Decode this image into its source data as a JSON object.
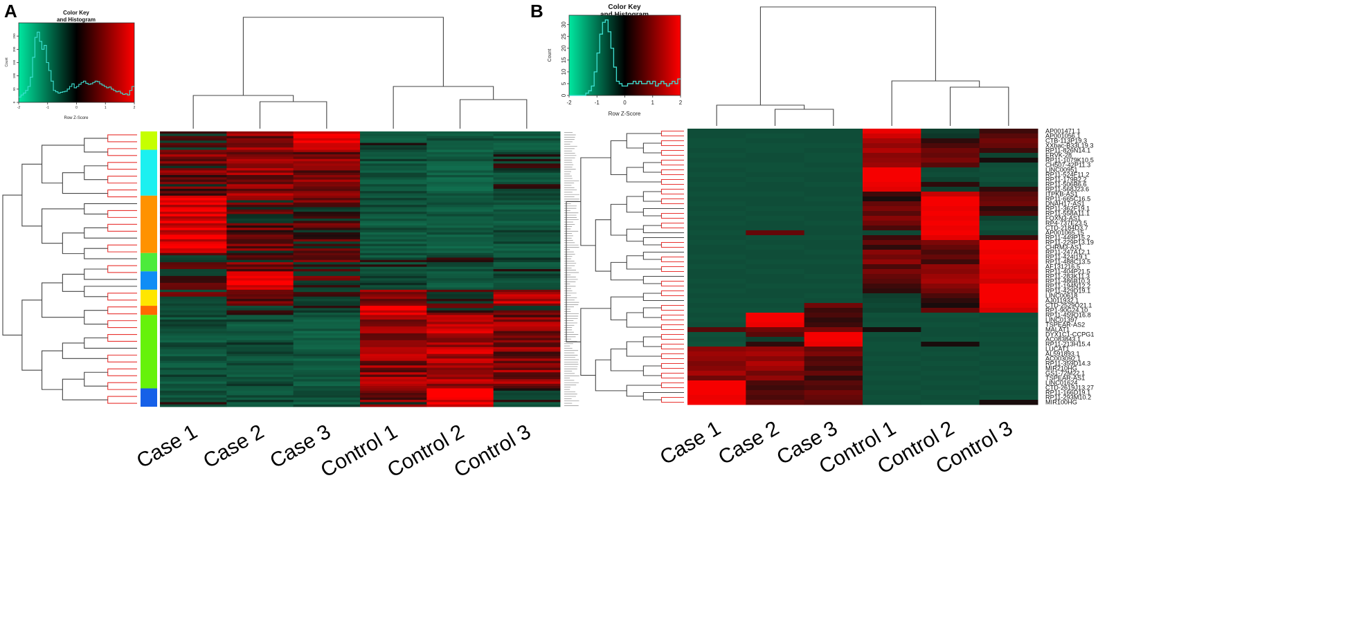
{
  "chart_data": [
    {
      "panel": "A",
      "type": "heatmap",
      "color_key": {
        "title_line1": "Color Key",
        "title_line2": "and Histogram",
        "xlabel": "Row Z-Score",
        "ylabel": "Count",
        "x_ticks": [
          "-2",
          "-1",
          "0",
          "1",
          "2"
        ],
        "y_ticks": [
          "0",
          "50",
          "100",
          "150",
          "200",
          "250"
        ],
        "xlim": [
          -2,
          2
        ],
        "ylim": [
          0,
          300
        ],
        "colors": [
          "#00e7a0",
          "#000000",
          "#ff0000"
        ],
        "histogram": [
          20,
          28,
          35,
          45,
          60,
          95,
          170,
          245,
          265,
          230,
          200,
          215,
          150,
          120,
          80,
          45,
          40,
          35,
          38,
          40,
          42,
          50,
          60,
          70,
          55,
          60,
          68,
          75,
          80,
          72,
          68,
          70,
          75,
          80,
          78,
          70,
          65,
          60,
          55,
          58,
          50,
          45,
          40,
          42,
          35,
          30,
          32,
          28,
          45,
          60
        ]
      },
      "columns": [
        "Case 1",
        "Case 2",
        "Case 3",
        "Control 1",
        "Control 2",
        "Control 3"
      ],
      "row_count": 120,
      "row_groups": [
        {
          "color": "#c6ff00",
          "rows": 8
        },
        {
          "color": "#1cf0f0",
          "rows": 20
        },
        {
          "color": "#ff9200",
          "rows": 25
        },
        {
          "color": "#4ceb3c",
          "rows": 8
        },
        {
          "color": "#0f8df5",
          "rows": 8
        },
        {
          "color": "#ffe600",
          "rows": 7
        },
        {
          "color": "#ff6a00",
          "rows": 4
        },
        {
          "color": "#66f20a",
          "rows": 32
        },
        {
          "color": "#1660e8",
          "rows": 8
        }
      ],
      "block_means": [
        [
          0.2,
          0.8,
          1.9,
          -0.6,
          -0.8,
          -0.9
        ],
        [
          0.6,
          0.9,
          0.8,
          -0.7,
          -1.0,
          -0.4
        ],
        [
          1.6,
          0.4,
          0.3,
          -0.8,
          -0.9,
          -0.7
        ],
        [
          0.3,
          0.5,
          0.4,
          -0.5,
          -0.4,
          -0.5
        ],
        [
          0.2,
          1.9,
          0.3,
          -0.3,
          -0.6,
          -0.5
        ],
        [
          0.1,
          0.2,
          -0.3,
          0.9,
          0.1,
          1.2
        ],
        [
          0.0,
          0.1,
          -0.2,
          1.8,
          0.4,
          0.5
        ],
        [
          -0.7,
          -0.6,
          -0.9,
          0.9,
          1.2,
          0.8
        ],
        [
          -0.5,
          -0.6,
          -0.8,
          0.6,
          1.9,
          -0.3
        ]
      ]
    },
    {
      "panel": "B",
      "type": "heatmap",
      "color_key": {
        "title_line1": "Color Key",
        "title_line2": "and Histogram",
        "xlabel": "Row Z-Score",
        "ylabel": "Count",
        "x_ticks": [
          "-2",
          "-1",
          "0",
          "1",
          "2"
        ],
        "y_ticks": [
          "0",
          "5",
          "10",
          "15",
          "20",
          "25",
          "30"
        ],
        "xlim": [
          -2,
          2
        ],
        "ylim": [
          0,
          34
        ],
        "colors": [
          "#00e7a0",
          "#000000",
          "#ff0000"
        ],
        "histogram": [
          0,
          0,
          0,
          0,
          0,
          0,
          1,
          2,
          4,
          10,
          18,
          26,
          31,
          32,
          27,
          20,
          12,
          6,
          5,
          4,
          4,
          5,
          5,
          6,
          5,
          6,
          5,
          5,
          6,
          5,
          6,
          4,
          5,
          6,
          5,
          4,
          5,
          6,
          5,
          7
        ]
      },
      "columns": [
        "Case 1",
        "Case 2",
        "Case 3",
        "Control 1",
        "Control 2",
        "Control 3"
      ],
      "genes": [
        "AP001471.1",
        "AP001056.1",
        "CTB-113P19.3",
        "XXbac-B33L19.3",
        "RP11-826N14.1",
        "ERVK-28",
        "RP11-1079K10.5",
        "CH507-42P11.3",
        "LINC00951",
        "RP11-524F11.2",
        "RP11-179B2.2",
        "RP11-506B6.6",
        "RP11-568J23.6",
        "ITPKB-AS1",
        "RP11-665C16.5",
        "DNAH17-AS1",
        "RP11-362F19.1",
        "RP11-558A11.1",
        "FOXN3-AS1",
        "RP4-737E23.5",
        "CTD-2184D3.7",
        "AP001065.15",
        "RP11-449P15.2",
        "RP11-229P13.19",
        "CHRM3-AS1",
        "RP11-247A12.1",
        "RP11-424I19.1",
        "RP11-488C13.5",
        "AF131216.5",
        "RP11-404P21.5",
        "RP11-283K11.3",
        "RP11-486B10.3",
        "RP11-194N12.2",
        "RP11-429D19.1",
        "LINC00618",
        "AJ011932.1",
        "CTD-2529O21.1",
        "RP1-90G24.10",
        "RP11-459O16.8",
        "LINC01397",
        "TSPEAR-AS2",
        "MALAT1",
        "DYX1C1-CCPG1",
        "AC083843.1",
        "RP11-213H15.4",
        "LUCAT1",
        "AL591893.1",
        "AC003092.1",
        "RP11-359D14.3",
        "MIR210HG",
        "GS1-72M22.1",
        "TSPEAR-AS1",
        "LINC01624",
        "CTD-2619J13.27",
        "RP11-166D19.1",
        "RP11-293M10.2",
        "MIR100HG"
      ],
      "values": [
        [
          -0.5,
          -0.5,
          -0.5,
          1.8,
          -0.2,
          0.2
        ],
        [
          -0.5,
          -0.6,
          -0.5,
          1.5,
          -0.1,
          0.4
        ],
        [
          -0.6,
          -0.5,
          -0.5,
          1.1,
          0.1,
          0.6
        ],
        [
          -0.6,
          -0.6,
          -0.6,
          0.9,
          0.3,
          0.5
        ],
        [
          -0.5,
          -0.6,
          -0.5,
          1.2,
          0.6,
          0.2
        ],
        [
          -0.6,
          -0.5,
          -0.6,
          0.8,
          0.5,
          -0.3
        ],
        [
          -0.5,
          -0.5,
          -0.6,
          0.9,
          0.7,
          0.0
        ],
        [
          -0.6,
          -0.6,
          -0.5,
          1.0,
          0.4,
          -0.5
        ],
        [
          -0.5,
          -0.6,
          -0.6,
          1.9,
          -0.4,
          -0.6
        ],
        [
          -0.6,
          -0.5,
          -0.5,
          1.9,
          -0.5,
          -0.5
        ],
        [
          -0.5,
          -0.6,
          -0.5,
          1.9,
          -0.3,
          -0.6
        ],
        [
          -0.6,
          -0.5,
          -0.6,
          1.8,
          0.1,
          -0.4
        ],
        [
          -0.5,
          -0.5,
          -0.5,
          1.7,
          -0.2,
          0.1
        ],
        [
          -0.6,
          -0.6,
          -0.5,
          0.2,
          1.4,
          0.4
        ],
        [
          -0.5,
          -0.5,
          -0.6,
          0.0,
          1.9,
          0.5
        ],
        [
          -0.6,
          -0.5,
          -0.5,
          0.5,
          1.9,
          0.6
        ],
        [
          -0.5,
          -0.6,
          -0.6,
          0.7,
          1.8,
          0.1
        ],
        [
          -0.6,
          -0.5,
          -0.5,
          0.4,
          1.9,
          0.3
        ],
        [
          -0.5,
          -0.6,
          -0.5,
          0.8,
          1.8,
          -0.2
        ],
        [
          -0.6,
          -0.5,
          -0.6,
          0.6,
          1.9,
          -0.5
        ],
        [
          -0.5,
          -0.5,
          -0.5,
          0.3,
          1.8,
          -0.6
        ],
        [
          -0.6,
          0.5,
          -0.5,
          -0.4,
          1.9,
          -0.4
        ],
        [
          -0.5,
          -0.6,
          -0.6,
          0.2,
          1.7,
          0.2
        ],
        [
          -0.6,
          -0.5,
          -0.5,
          0.5,
          0.7,
          1.9
        ],
        [
          -0.5,
          -0.6,
          -0.5,
          0.1,
          0.5,
          1.9
        ],
        [
          -0.5,
          -0.5,
          -0.6,
          0.8,
          0.3,
          1.8
        ],
        [
          -0.6,
          -0.5,
          -0.5,
          0.6,
          0.5,
          1.9
        ],
        [
          -0.5,
          -0.6,
          -0.6,
          0.9,
          0.2,
          1.8
        ],
        [
          -0.6,
          -0.5,
          -0.5,
          0.3,
          0.9,
          1.7
        ],
        [
          -0.5,
          -0.6,
          -0.5,
          0.7,
          0.8,
          1.6
        ],
        [
          -0.5,
          -0.5,
          -0.6,
          0.5,
          1.0,
          1.7
        ],
        [
          -0.6,
          -0.5,
          -0.5,
          0.4,
          1.1,
          1.5
        ],
        [
          -0.5,
          -0.6,
          -0.6,
          0.2,
          0.8,
          1.9
        ],
        [
          -0.6,
          -0.5,
          -0.5,
          0.1,
          0.6,
          1.9
        ],
        [
          -0.5,
          -0.5,
          -0.6,
          -0.2,
          0.3,
          1.9
        ],
        [
          -0.6,
          -0.6,
          -0.5,
          -0.3,
          0.1,
          1.9
        ],
        [
          -0.5,
          -0.5,
          0.6,
          -0.4,
          0.0,
          1.8
        ],
        [
          -0.6,
          -0.6,
          0.2,
          -0.3,
          0.5,
          1.6
        ],
        [
          -0.5,
          1.9,
          0.3,
          -0.6,
          -0.6,
          -0.5
        ],
        [
          -0.6,
          1.9,
          0.1,
          -0.5,
          -0.5,
          -0.6
        ],
        [
          -0.5,
          1.8,
          0.2,
          -0.6,
          -0.6,
          -0.5
        ],
        [
          0.4,
          0.6,
          0.7,
          0.0,
          -0.5,
          -0.6
        ],
        [
          -0.6,
          0.4,
          1.9,
          -0.6,
          -0.5,
          -0.5
        ],
        [
          -0.5,
          -0.2,
          1.9,
          -0.5,
          -0.6,
          -0.6
        ],
        [
          -0.6,
          0.1,
          1.8,
          -0.6,
          0.0,
          -0.5
        ],
        [
          0.8,
          0.9,
          0.5,
          -0.6,
          -0.5,
          -0.6
        ],
        [
          1.0,
          1.1,
          0.7,
          -0.5,
          -0.6,
          -0.5
        ],
        [
          0.9,
          0.8,
          0.3,
          -0.6,
          -0.5,
          -0.6
        ],
        [
          0.7,
          1.2,
          0.4,
          -0.5,
          -0.6,
          -0.5
        ],
        [
          0.8,
          1.0,
          0.2,
          -0.6,
          -0.5,
          -0.6
        ],
        [
          1.1,
          0.6,
          0.5,
          -0.5,
          -0.6,
          -0.5
        ],
        [
          0.6,
          0.9,
          0.1,
          -0.6,
          -0.5,
          -0.6
        ],
        [
          1.9,
          0.3,
          0.4,
          -0.5,
          -0.6,
          -0.5
        ],
        [
          1.9,
          0.2,
          0.3,
          -0.6,
          -0.5,
          -0.6
        ],
        [
          1.9,
          0.4,
          0.6,
          -0.5,
          -0.6,
          -0.5
        ],
        [
          1.8,
          0.3,
          0.5,
          -0.6,
          -0.5,
          -0.6
        ],
        [
          1.9,
          0.5,
          0.4,
          -0.5,
          -0.6,
          0.0
        ]
      ]
    }
  ]
}
